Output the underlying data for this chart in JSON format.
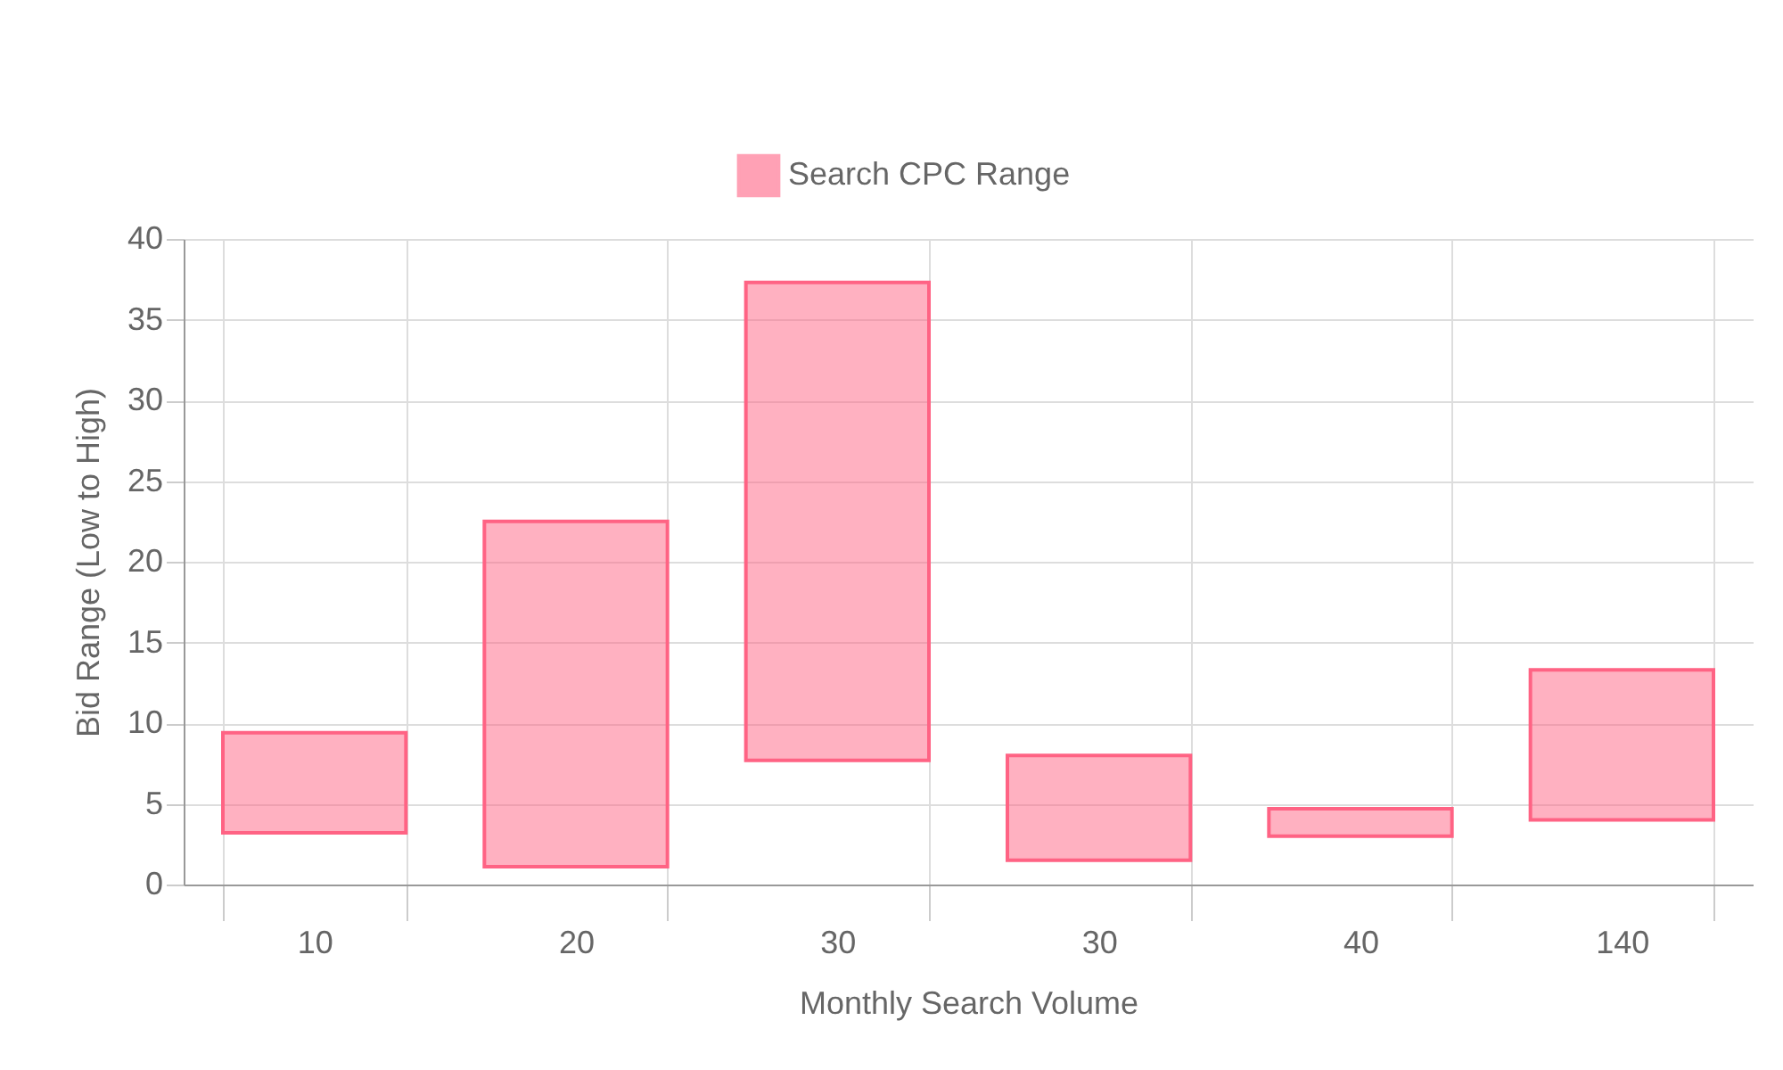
{
  "chart_data": {
    "type": "bar",
    "categories": [
      "10",
      "20",
      "30",
      "30",
      "40",
      "140"
    ],
    "series": [
      {
        "name": "Search CPC Range",
        "color": "#ff6384",
        "values": [
          6.2,
          21.4,
          29.6,
          6.5,
          1.7,
          9.3
        ],
        "base": [
          3.2,
          1.1,
          7.7,
          1.5,
          3.0,
          4.0
        ]
      }
    ],
    "xlabel": "Monthly Search Volume",
    "ylabel": "Bid Range (Low to High)",
    "ylim": [
      0,
      40
    ],
    "yticks": [
      0,
      5,
      10,
      15,
      20,
      25,
      30,
      35,
      40
    ],
    "grid": true,
    "legend": "top"
  }
}
